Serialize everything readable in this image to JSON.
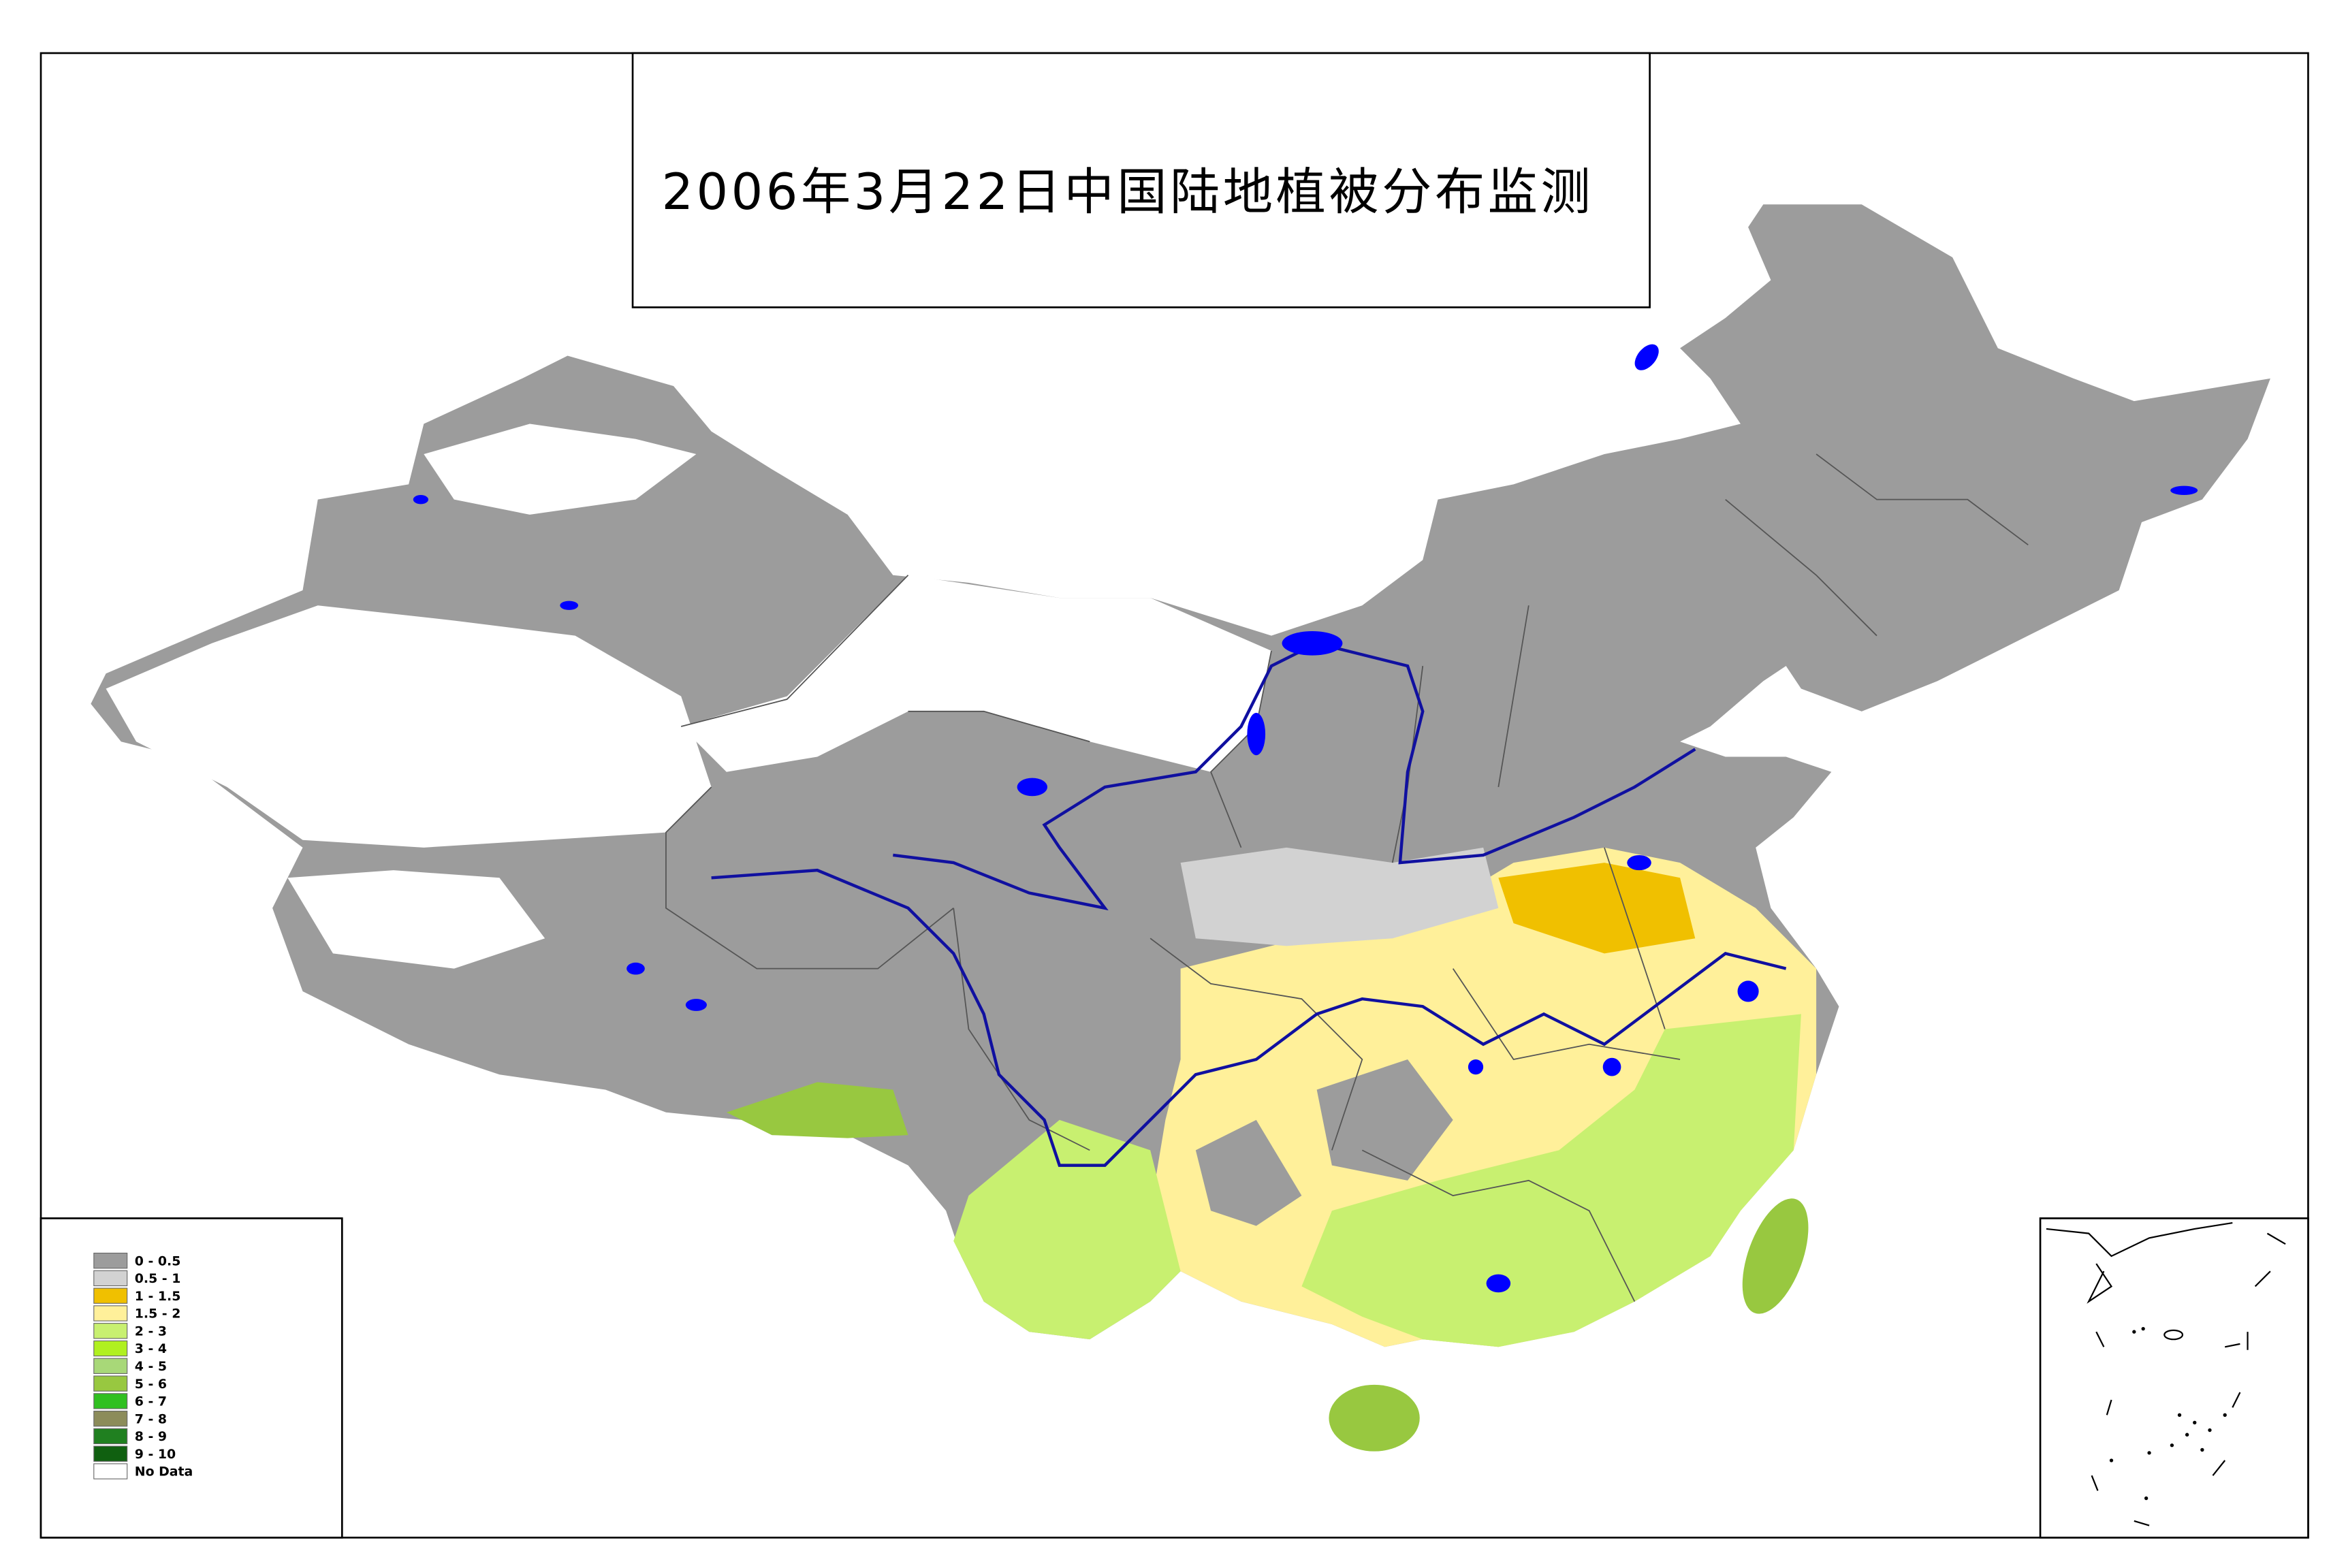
{
  "header": {
    "title": "2006年3月22日中国陆地植被分布监测"
  },
  "legend": {
    "items": [
      {
        "label": "0 - 0.5",
        "color": "#9c9c9c"
      },
      {
        "label": "0.5 - 1",
        "color": "#d2d2d2"
      },
      {
        "label": "1 - 1.5",
        "color": "#f0c000"
      },
      {
        "label": "1.5 - 2",
        "color": "#fff09a"
      },
      {
        "label": "2 - 3",
        "color": "#c8f070"
      },
      {
        "label": "3 - 4",
        "color": "#b0f020"
      },
      {
        "label": "4 - 5",
        "color": "#a8d878"
      },
      {
        "label": "5 - 6",
        "color": "#98c840"
      },
      {
        "label": "6 - 7",
        "color": "#30c020"
      },
      {
        "label": "7 - 8",
        "color": "#8c8c5a"
      },
      {
        "label": "8 - 9",
        "color": "#208020"
      },
      {
        "label": "9 - 10",
        "color": "#106010"
      },
      {
        "label": "No Data",
        "color": "#ffffff"
      }
    ]
  }
}
